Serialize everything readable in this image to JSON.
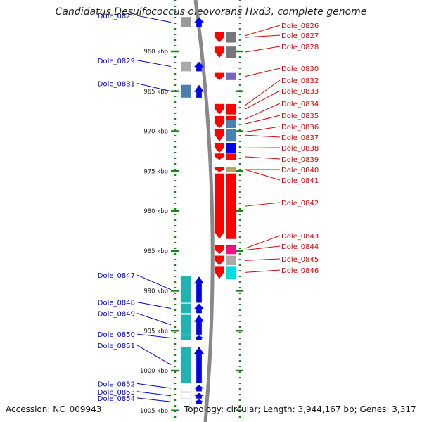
{
  "title": "Candidatus Desulfococcus oleovorans Hxd3, complete genome",
  "footer": {
    "accession": "Accession: NC_009943",
    "topology": "Topology: circular; Length: 3,944,167 bp; Genes: 3,317"
  },
  "colors": {
    "left_label": "#0000cc",
    "right_label": "#dd0000",
    "ruler": "#138a13",
    "backbone": "#888888"
  },
  "ticks": [
    {
      "label": "960 kbp",
      "kbp": 960
    },
    {
      "label": "965 kbp",
      "kbp": 965
    },
    {
      "label": "970 kbp",
      "kbp": 970
    },
    {
      "label": "975 kbp",
      "kbp": 975
    },
    {
      "label": "980 kbp",
      "kbp": 980
    },
    {
      "label": "985 kbp",
      "kbp": 985
    },
    {
      "label": "990 kbp",
      "kbp": 990
    },
    {
      "label": "995 kbp",
      "kbp": 995
    },
    {
      "label": "1000 kbp",
      "kbp": 1000
    },
    {
      "label": "1005 kbp",
      "kbp": 1005
    }
  ],
  "left_genes": [
    {
      "label": "Dole_0825",
      "start_kbp": 955.7,
      "end_kbp": 957.0,
      "color": "#999999"
    },
    {
      "label": "Dole_0829",
      "start_kbp": 961.3,
      "end_kbp": 962.5,
      "color": "#aaaaaa"
    },
    {
      "label": "Dole_0831",
      "start_kbp": 964.2,
      "end_kbp": 965.8,
      "color": "#4a7fb0"
    },
    {
      "label": "Dole_0847",
      "start_kbp": 988.2,
      "end_kbp": 991.5,
      "color": "#1fb4b4"
    },
    {
      "label": "Dole_0848",
      "start_kbp": 991.6,
      "end_kbp": 992.8,
      "color": "#1fb4b4"
    },
    {
      "label": "Dole_0849",
      "start_kbp": 993.0,
      "end_kbp": 995.5,
      "color": "#1fb4b4"
    },
    {
      "label": "Dole_0850",
      "start_kbp": 995.6,
      "end_kbp": 996.2,
      "color": "#1fb4b4"
    },
    {
      "label": "Dole_0851",
      "start_kbp": 997.0,
      "end_kbp": 1001.5,
      "color": "#1fb4b4"
    },
    {
      "label": "Dole_0852",
      "start_kbp": 1001.8,
      "end_kbp": 1002.6,
      "color": "#ffffff"
    },
    {
      "label": "Dole_0853",
      "start_kbp": 1002.8,
      "end_kbp": 1003.5,
      "color": "#ffffff"
    },
    {
      "label": "Dole_0854",
      "start_kbp": 1003.6,
      "end_kbp": 1004.2,
      "color": "#ffffff"
    }
  ],
  "right_genes": [
    {
      "label": "Dole_0826",
      "start_kbp": 957.7,
      "end_kbp": 958.4,
      "color": "#ee8800"
    },
    {
      "label": "Dole_0827",
      "start_kbp": 957.6,
      "end_kbp": 958.9,
      "color": "#777777"
    },
    {
      "label": "Dole_0828",
      "start_kbp": 959.4,
      "end_kbp": 960.8,
      "color": "#777777"
    },
    {
      "label": "Dole_0830",
      "start_kbp": 962.7,
      "end_kbp": 963.6,
      "color": "#7766bb"
    },
    {
      "label": "Dole_0832",
      "start_kbp": 966.6,
      "end_kbp": 967.0,
      "color": "#bbbbbb"
    },
    {
      "label": "Dole_0833",
      "start_kbp": 966.6,
      "end_kbp": 967.9,
      "color": "#ff0000"
    },
    {
      "label": "Dole_0834",
      "start_kbp": 968.1,
      "end_kbp": 968.9,
      "color": "#ff0000"
    },
    {
      "label": "Dole_0835",
      "start_kbp": 968.6,
      "end_kbp": 969.6,
      "color": "#4a7fb0"
    },
    {
      "label": "Dole_0836",
      "start_kbp": 969.7,
      "end_kbp": 970.5,
      "color": "#ff0000"
    },
    {
      "label": "Dole_0837",
      "start_kbp": 969.7,
      "end_kbp": 971.3,
      "color": "#4a7fb0"
    },
    {
      "label": "Dole_0838",
      "start_kbp": 971.5,
      "end_kbp": 972.7,
      "color": "#0000ee"
    },
    {
      "label": "Dole_0839",
      "start_kbp": 972.8,
      "end_kbp": 973.6,
      "color": "#ff0000"
    },
    {
      "label": "Dole_0840",
      "start_kbp": 974.5,
      "end_kbp": 975.1,
      "color": "#ff0000"
    },
    {
      "label": "Dole_0841",
      "start_kbp": 974.5,
      "end_kbp": 975.1,
      "color": "#b5a36a"
    },
    {
      "label": "Dole_0842",
      "start_kbp": 975.3,
      "end_kbp": 983.5,
      "color": "#ff0000"
    },
    {
      "label": "Dole_0843",
      "start_kbp": 984.3,
      "end_kbp": 985.1,
      "color": "#ff0000"
    },
    {
      "label": "Dole_0844",
      "start_kbp": 984.4,
      "end_kbp": 985.4,
      "color": "#ee1188"
    },
    {
      "label": "Dole_0845",
      "start_kbp": 985.6,
      "end_kbp": 986.8,
      "color": "#aaaaaa"
    },
    {
      "label": "Dole_0846",
      "start_kbp": 986.9,
      "end_kbp": 988.5,
      "color": "#00dddd"
    }
  ]
}
